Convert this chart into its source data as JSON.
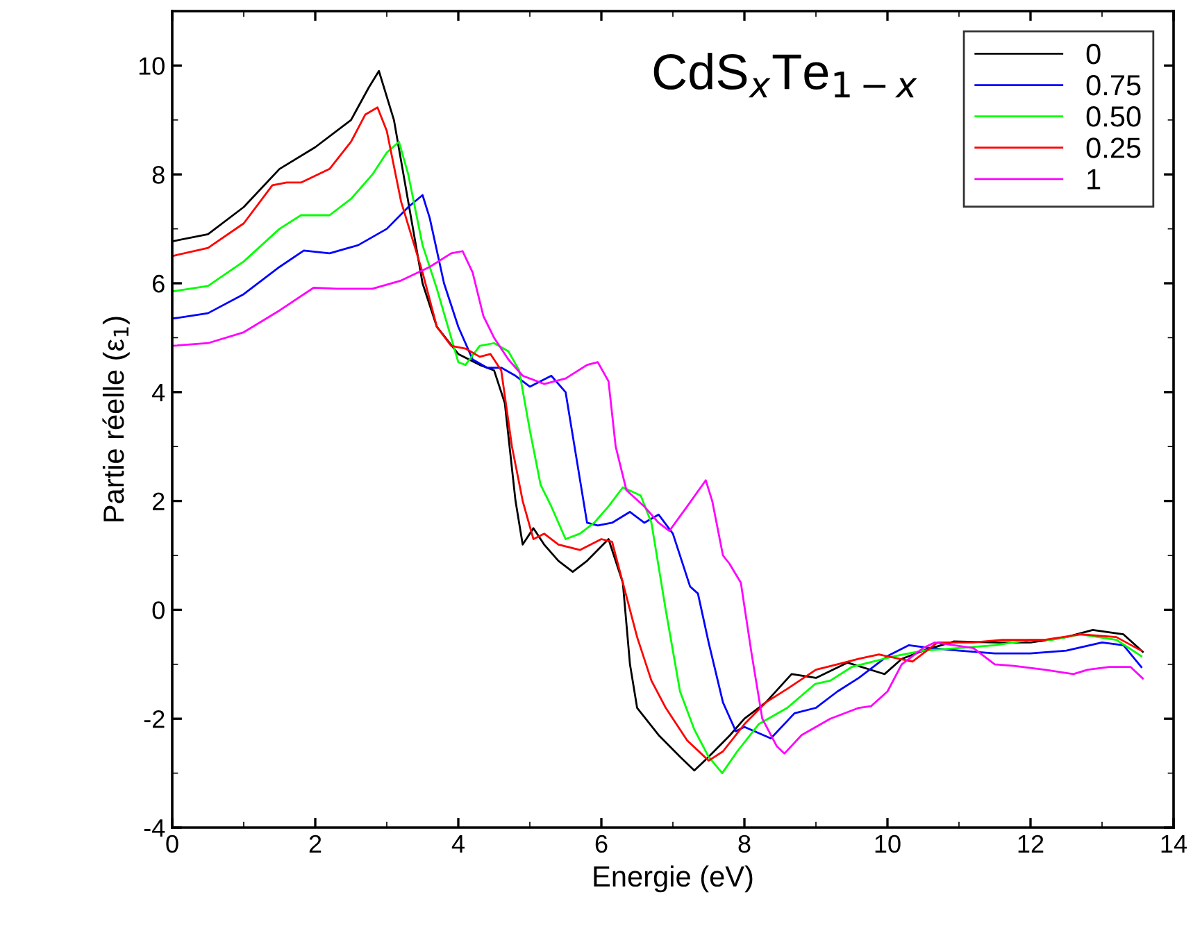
{
  "chart_data": {
    "type": "line",
    "xlabel": "Energie (eV)",
    "ylabel": "Partie réelle (ε$_{1}$)",
    "annotations": [
      "CdS$_{x}$Te$_{1−x}$"
    ],
    "xlim": [
      0,
      14
    ],
    "xticks": [
      0,
      2,
      4,
      6,
      8,
      10,
      12,
      14
    ],
    "ylim": [
      -4,
      11
    ],
    "yticks": [
      -4,
      -2,
      0,
      2,
      4,
      6,
      8,
      10
    ],
    "grid": false,
    "legend": "top right",
    "line_style": "solid",
    "marker": "none",
    "series": [
      {
        "name": "0",
        "color": "#000000",
        "x": [
          0,
          0.5,
          1.0,
          1.5,
          2.0,
          2.5,
          2.75,
          2.89,
          3.1,
          3.3,
          3.5,
          3.7,
          4.0,
          4.3,
          4.5,
          4.65,
          4.8,
          4.9,
          5.05,
          5.2,
          5.4,
          5.6,
          5.8,
          6.1,
          6.3,
          6.4,
          6.5,
          6.8,
          7.1,
          7.3,
          7.5,
          7.8,
          8.0,
          8.3,
          8.66,
          9.0,
          9.44,
          9.96,
          10.2,
          10.5,
          10.93,
          11.5,
          12.0,
          12.5,
          12.87,
          13.3,
          13.57
        ],
        "values": [
          6.77,
          6.9,
          7.4,
          8.1,
          8.5,
          9.0,
          9.6,
          9.9,
          9.0,
          7.5,
          6.0,
          5.2,
          4.7,
          4.5,
          4.4,
          3.8,
          2.0,
          1.2,
          1.5,
          1.2,
          0.9,
          0.7,
          0.9,
          1.3,
          0.5,
          -1.0,
          -1.8,
          -2.3,
          -2.7,
          -2.95,
          -2.7,
          -2.3,
          -2.0,
          -1.7,
          -1.18,
          -1.25,
          -0.97,
          -1.18,
          -0.9,
          -0.75,
          -0.58,
          -0.6,
          -0.6,
          -0.5,
          -0.37,
          -0.45,
          -0.77
        ]
      },
      {
        "name": "0.75",
        "color": "#0000ff",
        "x": [
          0,
          0.5,
          1.0,
          1.5,
          1.84,
          2.2,
          2.6,
          3.0,
          3.3,
          3.5,
          3.6,
          3.8,
          4.0,
          4.2,
          4.4,
          4.6,
          4.8,
          5.0,
          5.3,
          5.5,
          5.65,
          5.8,
          5.95,
          6.15,
          6.4,
          6.6,
          6.8,
          7.0,
          7.24,
          7.35,
          7.5,
          7.7,
          7.88,
          8.0,
          8.37,
          8.7,
          9.0,
          9.3,
          9.6,
          10.0,
          10.3,
          10.6,
          11.0,
          11.5,
          12.0,
          12.5,
          13.0,
          13.3,
          13.55
        ],
        "values": [
          5.35,
          5.45,
          5.8,
          6.3,
          6.6,
          6.55,
          6.7,
          7.0,
          7.4,
          7.62,
          7.2,
          6.0,
          5.2,
          4.6,
          4.45,
          4.45,
          4.3,
          4.1,
          4.3,
          4.0,
          2.8,
          1.6,
          1.55,
          1.6,
          1.8,
          1.6,
          1.75,
          1.4,
          0.43,
          0.3,
          -0.6,
          -1.7,
          -2.23,
          -2.15,
          -2.36,
          -1.9,
          -1.8,
          -1.5,
          -1.25,
          -0.85,
          -0.65,
          -0.7,
          -0.75,
          -0.8,
          -0.8,
          -0.75,
          -0.6,
          -0.65,
          -1.05
        ]
      },
      {
        "name": "0.50",
        "color": "#00ff00",
        "x": [
          0,
          0.5,
          1.0,
          1.5,
          1.8,
          2.2,
          2.5,
          2.8,
          3.0,
          3.17,
          3.3,
          3.5,
          3.7,
          3.9,
          4.0,
          4.1,
          4.3,
          4.5,
          4.7,
          4.85,
          5.0,
          5.15,
          5.3,
          5.5,
          5.7,
          5.9,
          6.1,
          6.3,
          6.55,
          6.7,
          6.9,
          7.1,
          7.3,
          7.5,
          7.69,
          7.9,
          8.2,
          8.6,
          8.99,
          9.2,
          9.5,
          9.8,
          10.1,
          10.5,
          11.0,
          11.5,
          12.0,
          12.3,
          12.7,
          13.2,
          13.55
        ],
        "values": [
          5.85,
          5.95,
          6.4,
          7.0,
          7.25,
          7.25,
          7.55,
          8.0,
          8.4,
          8.6,
          8.0,
          6.7,
          5.9,
          5.0,
          4.55,
          4.5,
          4.85,
          4.9,
          4.75,
          4.4,
          3.3,
          2.3,
          1.9,
          1.3,
          1.4,
          1.6,
          1.9,
          2.25,
          2.1,
          1.6,
          0,
          -1.5,
          -2.2,
          -2.7,
          -3.0,
          -2.6,
          -2.1,
          -1.8,
          -1.36,
          -1.3,
          -1.05,
          -0.95,
          -0.85,
          -0.75,
          -0.7,
          -0.65,
          -0.55,
          -0.55,
          -0.45,
          -0.55,
          -0.85
        ]
      },
      {
        "name": "0.25",
        "color": "#ff0000",
        "x": [
          0,
          0.5,
          1.0,
          1.4,
          1.6,
          1.8,
          2.2,
          2.5,
          2.7,
          2.87,
          3.0,
          3.2,
          3.5,
          3.7,
          3.9,
          4.1,
          4.3,
          4.45,
          4.6,
          4.75,
          4.9,
          5.05,
          5.2,
          5.4,
          5.7,
          6.0,
          6.15,
          6.3,
          6.5,
          6.7,
          6.9,
          7.2,
          7.5,
          7.7,
          8.0,
          8.3,
          8.6,
          9.0,
          9.3,
          9.6,
          9.88,
          10.35,
          10.7,
          11.2,
          11.6,
          12.2,
          12.7,
          13.2,
          13.55
        ],
        "values": [
          6.5,
          6.65,
          7.1,
          7.8,
          7.85,
          7.85,
          8.1,
          8.6,
          9.1,
          9.23,
          8.8,
          7.5,
          6.2,
          5.2,
          4.85,
          4.8,
          4.65,
          4.7,
          4.4,
          3.0,
          2.0,
          1.3,
          1.4,
          1.2,
          1.1,
          1.3,
          1.25,
          0.5,
          -0.5,
          -1.3,
          -1.8,
          -2.4,
          -2.77,
          -2.6,
          -2.1,
          -1.7,
          -1.45,
          -1.1,
          -1.0,
          -0.9,
          -0.82,
          -0.95,
          -0.6,
          -0.6,
          -0.55,
          -0.55,
          -0.45,
          -0.5,
          -0.75
        ]
      },
      {
        "name": "1",
        "color": "#ff00ff",
        "x": [
          0,
          0.5,
          1.0,
          1.5,
          1.98,
          2.3,
          2.8,
          3.2,
          3.6,
          3.9,
          4.06,
          4.2,
          4.35,
          4.5,
          4.7,
          4.9,
          5.2,
          5.5,
          5.8,
          5.95,
          6.1,
          6.2,
          6.35,
          6.6,
          6.8,
          6.95,
          7.2,
          7.46,
          7.55,
          7.7,
          7.79,
          7.95,
          8.1,
          8.25,
          8.45,
          8.56,
          8.8,
          9.2,
          9.6,
          9.77,
          10.0,
          10.2,
          10.5,
          10.66,
          11.2,
          11.5,
          11.77,
          12.2,
          12.6,
          12.8,
          13.1,
          13.4,
          13.57
        ],
        "values": [
          4.85,
          4.9,
          5.1,
          5.5,
          5.92,
          5.9,
          5.9,
          6.05,
          6.3,
          6.55,
          6.59,
          6.2,
          5.4,
          5.0,
          4.6,
          4.3,
          4.15,
          4.25,
          4.5,
          4.55,
          4.2,
          3.0,
          2.2,
          1.9,
          1.6,
          1.45,
          1.9,
          2.38,
          2.0,
          1.0,
          0.85,
          0.5,
          -0.8,
          -2.0,
          -2.5,
          -2.64,
          -2.3,
          -2.0,
          -1.8,
          -1.77,
          -1.5,
          -1.0,
          -0.7,
          -0.6,
          -0.7,
          -1.0,
          -1.03,
          -1.1,
          -1.18,
          -1.1,
          -1.05,
          -1.05,
          -1.26
        ]
      }
    ]
  }
}
